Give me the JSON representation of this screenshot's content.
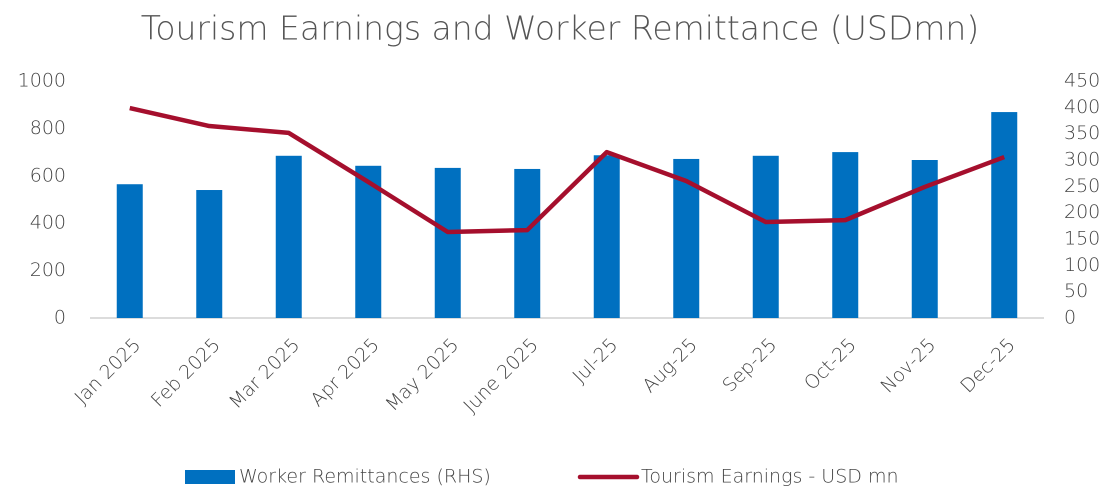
{
  "chart_data": {
    "type": "bar",
    "title": "Tourism Earnings and Worker Remittance (USDmn)",
    "categories": [
      "Jan 2025",
      "Feb 2025",
      "Mar 2025",
      "Apr 2025",
      "May 2025",
      "June 2025",
      "Jul-25",
      "Aug-25",
      "Sep-25",
      "Oct-25",
      "Nov-25",
      "Dec-25"
    ],
    "series": [
      {
        "name": "Worker Remittances (RHS)",
        "type": "bar",
        "axis": "y2",
        "color": "#0070c0",
        "values": [
          254,
          243,
          308,
          289,
          285,
          283,
          309,
          302,
          308,
          315,
          300,
          391
        ]
      },
      {
        "name": "Tourism Earnings - USD mn",
        "type": "line",
        "color": "#a50f2d",
        "values": [
          886,
          810,
          781,
          574,
          363,
          371,
          700,
          578,
          405,
          413,
          553,
          679
        ]
      }
    ],
    "ylim": [
      0,
      1000
    ],
    "yticks": [
      0,
      200,
      400,
      600,
      800,
      1000
    ],
    "y2lim": [
      0,
      450
    ],
    "y2ticks": [
      0,
      50,
      100,
      150,
      200,
      250,
      300,
      350,
      400,
      450
    ],
    "legend": "bottom"
  }
}
